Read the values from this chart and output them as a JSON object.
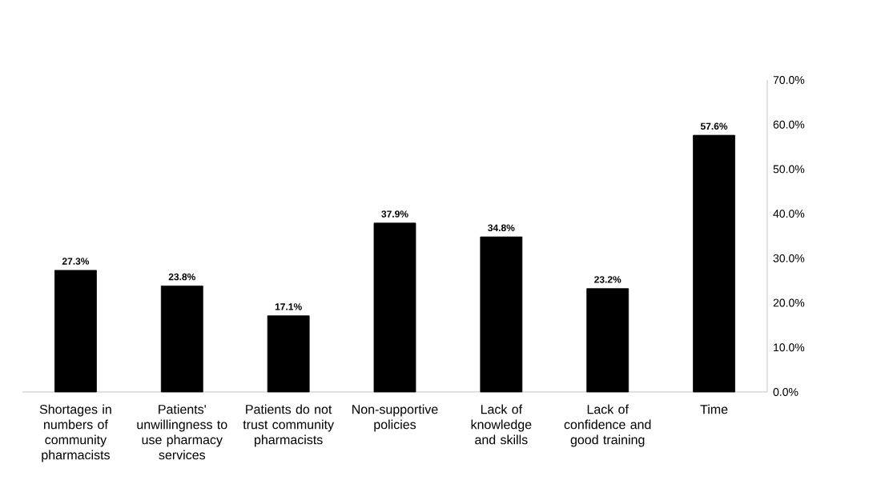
{
  "chart_data": {
    "type": "bar",
    "categories": [
      "Shortages in numbers of community pharmacists",
      "Patients' unwillingness to use pharmacy services",
      "Patients do not trust community pharmacists",
      "Non-supportive policies",
      "Lack of knowledge and skills",
      "Lack of confidence and good training",
      "Time"
    ],
    "values": [
      27.3,
      23.8,
      17.1,
      37.9,
      34.8,
      23.2,
      57.6
    ],
    "value_labels": [
      "27.3%",
      "23.8%",
      "17.1%",
      "37.9%",
      "34.8%",
      "23.2%",
      "57.6%"
    ],
    "color": "#000000",
    "ylim": [
      0,
      70
    ],
    "yticks": [
      {
        "value": 0,
        "label": "0.0%"
      },
      {
        "value": 10,
        "label": "10.0%"
      },
      {
        "value": 20,
        "label": "20.0%"
      },
      {
        "value": 30,
        "label": "30.0%"
      },
      {
        "value": 40,
        "label": "40.0%"
      },
      {
        "value": 50,
        "label": "50.0%"
      },
      {
        "value": 60,
        "label": "60.0%"
      },
      {
        "value": 70,
        "label": "70.0%"
      }
    ],
    "grid": false
  }
}
